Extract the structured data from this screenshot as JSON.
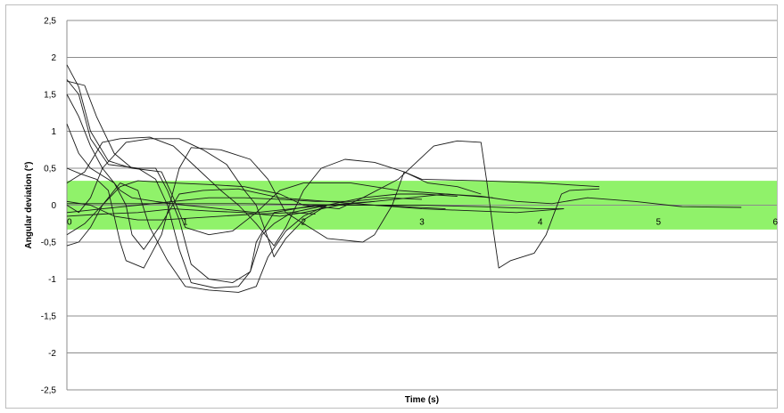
{
  "chart_data": {
    "type": "line",
    "title": "",
    "xlabel": "Time (s)",
    "ylabel": "Angular deviation (°)",
    "xlim": [
      0,
      6
    ],
    "ylim": [
      -2.5,
      2.5
    ],
    "x_ticks": [
      "0",
      "1",
      "2",
      "3",
      "4",
      "5",
      "6"
    ],
    "y_ticks": [
      "2,5",
      "2",
      "1,5",
      "1",
      "0,5",
      "0",
      "-0,5",
      "-1",
      "-1,5",
      "-2",
      "-2,5"
    ],
    "grid": true,
    "tolerance_band": {
      "ymin": -0.33,
      "ymax": 0.33,
      "color": "#90f26a"
    },
    "line_color": "#1a1a1a",
    "gridline_color": "#8c8c8c",
    "series": [
      {
        "points": [
          [
            0,
            1.9
          ],
          [
            0.1,
            1.6
          ],
          [
            0.2,
            1.0
          ],
          [
            0.35,
            0.6
          ],
          [
            0.55,
            0.5
          ],
          [
            0.8,
            0.45
          ],
          [
            0.9,
            0.1
          ],
          [
            1.0,
            -0.3
          ],
          [
            1.2,
            -0.4
          ],
          [
            1.4,
            -0.35
          ],
          [
            1.6,
            -0.1
          ],
          [
            1.8,
            0.2
          ],
          [
            2.0,
            0.3
          ],
          [
            2.4,
            0.3
          ],
          [
            2.8,
            0.2
          ],
          [
            3.2,
            0.15
          ],
          [
            3.6,
            0.1
          ]
        ]
      },
      {
        "points": [
          [
            0,
            1.7
          ],
          [
            0.1,
            1.5
          ],
          [
            0.2,
            0.9
          ],
          [
            0.35,
            0.55
          ],
          [
            0.6,
            0.5
          ],
          [
            0.75,
            0.35
          ],
          [
            0.85,
            0.0
          ],
          [
            0.95,
            -0.6
          ],
          [
            1.05,
            -1.05
          ],
          [
            1.25,
            -1.12
          ],
          [
            1.45,
            -1.1
          ],
          [
            1.55,
            -0.9
          ],
          [
            1.65,
            -0.4
          ],
          [
            1.75,
            -0.25
          ],
          [
            1.9,
            -0.1
          ],
          [
            2.2,
            0.0
          ],
          [
            2.6,
            0.05
          ]
        ]
      },
      {
        "points": [
          [
            0,
            1.68
          ],
          [
            0.15,
            1.62
          ],
          [
            0.25,
            1.2
          ],
          [
            0.4,
            0.7
          ],
          [
            0.55,
            0.5
          ],
          [
            0.75,
            0.5
          ],
          [
            0.85,
            0.2
          ],
          [
            0.95,
            -0.2
          ],
          [
            1.05,
            -0.8
          ],
          [
            1.2,
            -1.0
          ],
          [
            1.4,
            -1.05
          ],
          [
            1.55,
            -0.9
          ],
          [
            1.6,
            -0.5
          ],
          [
            1.75,
            -0.1
          ],
          [
            2.1,
            0.0
          ],
          [
            2.6,
            0.0
          ],
          [
            3.2,
            -0.05
          ]
        ]
      },
      {
        "points": [
          [
            0,
            1.1
          ],
          [
            0.1,
            0.7
          ],
          [
            0.2,
            0.5
          ],
          [
            0.4,
            0.3
          ],
          [
            0.5,
            0.0
          ],
          [
            0.55,
            -0.4
          ],
          [
            0.65,
            -0.6
          ],
          [
            0.8,
            -0.25
          ],
          [
            0.95,
            0.15
          ],
          [
            1.15,
            0.2
          ],
          [
            1.45,
            0.22
          ],
          [
            1.8,
            0.1
          ],
          [
            2.2,
            0.05
          ],
          [
            2.6,
            0.0
          ],
          [
            3.0,
            -0.05
          ],
          [
            3.8,
            -0.1
          ],
          [
            4.2,
            -0.05
          ]
        ]
      },
      {
        "points": [
          [
            0,
            0.5
          ],
          [
            0.12,
            0.42
          ],
          [
            0.25,
            0.35
          ],
          [
            0.35,
            0.2
          ],
          [
            0.45,
            -0.5
          ],
          [
            0.5,
            -0.75
          ],
          [
            0.65,
            -0.85
          ],
          [
            0.8,
            -0.4
          ],
          [
            0.95,
            0.5
          ],
          [
            1.05,
            0.78
          ],
          [
            1.3,
            0.75
          ],
          [
            1.55,
            0.62
          ],
          [
            1.7,
            0.35
          ],
          [
            1.85,
            -0.1
          ],
          [
            2.05,
            -0.3
          ],
          [
            2.2,
            -0.45
          ],
          [
            2.5,
            -0.5
          ],
          [
            2.6,
            -0.4
          ],
          [
            2.75,
            0.0
          ],
          [
            2.85,
            0.45
          ],
          [
            3.0,
            0.35
          ],
          [
            3.5,
            0.33
          ],
          [
            4.0,
            0.3
          ],
          [
            4.5,
            0.25
          ]
        ]
      },
      {
        "points": [
          [
            0,
            0.3
          ],
          [
            0.15,
            0.45
          ],
          [
            0.3,
            0.85
          ],
          [
            0.45,
            0.9
          ],
          [
            0.7,
            0.92
          ],
          [
            0.9,
            0.8
          ],
          [
            1.1,
            0.5
          ],
          [
            1.3,
            0.2
          ],
          [
            1.45,
            0.0
          ],
          [
            1.6,
            -0.25
          ],
          [
            1.75,
            -0.55
          ],
          [
            1.85,
            -0.3
          ],
          [
            2.0,
            0.2
          ],
          [
            2.15,
            0.5
          ],
          [
            2.35,
            0.62
          ],
          [
            2.6,
            0.58
          ],
          [
            2.85,
            0.45
          ],
          [
            3.05,
            0.3
          ],
          [
            3.3,
            0.25
          ],
          [
            3.5,
            0.15
          ]
        ]
      },
      {
        "points": [
          [
            0,
            0.0
          ],
          [
            0.1,
            -0.1
          ],
          [
            0.2,
            0.1
          ],
          [
            0.3,
            0.5
          ],
          [
            0.5,
            0.85
          ],
          [
            0.7,
            0.9
          ],
          [
            0.95,
            0.9
          ],
          [
            1.15,
            0.75
          ],
          [
            1.35,
            0.55
          ],
          [
            1.5,
            0.2
          ],
          [
            1.6,
            0.0
          ],
          [
            1.7,
            -0.45
          ],
          [
            1.75,
            -0.7
          ],
          [
            1.85,
            -0.45
          ],
          [
            2.0,
            -0.2
          ],
          [
            2.2,
            0.0
          ],
          [
            2.5,
            0.1
          ],
          [
            2.8,
            0.35
          ],
          [
            3.1,
            0.8
          ],
          [
            3.3,
            0.87
          ],
          [
            3.5,
            0.85
          ],
          [
            3.55,
            0.3
          ],
          [
            3.6,
            -0.3
          ],
          [
            3.65,
            -0.85
          ],
          [
            3.75,
            -0.75
          ],
          [
            3.95,
            -0.65
          ],
          [
            4.05,
            -0.4
          ],
          [
            4.12,
            -0.1
          ],
          [
            4.18,
            0.15
          ],
          [
            4.25,
            0.2
          ],
          [
            4.5,
            0.22
          ]
        ]
      },
      {
        "points": [
          [
            0,
            -0.55
          ],
          [
            0.1,
            -0.5
          ],
          [
            0.2,
            -0.3
          ],
          [
            0.3,
            0.0
          ],
          [
            0.45,
            0.25
          ],
          [
            0.6,
            0.33
          ],
          [
            0.9,
            0.3
          ],
          [
            1.2,
            0.28
          ],
          [
            1.5,
            0.25
          ],
          [
            1.8,
            0.15
          ],
          [
            2.0,
            0.0
          ],
          [
            2.3,
            -0.05
          ],
          [
            2.5,
            0.1
          ],
          [
            2.8,
            0.15
          ],
          [
            3.0,
            0.15
          ],
          [
            3.3,
            0.12
          ]
        ]
      },
      {
        "points": [
          [
            0,
            -0.4
          ],
          [
            0.15,
            -0.25
          ],
          [
            0.3,
            0.0
          ],
          [
            0.45,
            0.3
          ],
          [
            0.6,
            0.2
          ],
          [
            0.7,
            -0.3
          ],
          [
            0.85,
            -0.75
          ],
          [
            1.0,
            -1.1
          ],
          [
            1.2,
            -1.15
          ],
          [
            1.45,
            -1.18
          ],
          [
            1.6,
            -1.1
          ],
          [
            1.7,
            -0.7
          ],
          [
            1.85,
            -0.35
          ],
          [
            2.0,
            -0.15
          ],
          [
            2.2,
            0.0
          ]
        ]
      },
      {
        "points": [
          [
            0,
            -0.15
          ],
          [
            0.3,
            -0.12
          ],
          [
            0.6,
            -0.1
          ],
          [
            0.9,
            -0.05
          ],
          [
            1.2,
            -0.08
          ],
          [
            1.5,
            -0.1
          ],
          [
            1.8,
            -0.15
          ],
          [
            2.0,
            -0.1
          ],
          [
            2.3,
            0.0
          ],
          [
            2.6,
            0.05
          ],
          [
            2.9,
            0.1
          ],
          [
            3.2,
            0.15
          ],
          [
            3.5,
            0.12
          ],
          [
            3.8,
            0.05
          ],
          [
            4.1,
            0.02
          ],
          [
            4.4,
            0.1
          ],
          [
            4.8,
            0.05
          ],
          [
            5.2,
            -0.02
          ],
          [
            5.7,
            -0.03
          ]
        ]
      },
      {
        "points": [
          [
            0,
            0.02
          ],
          [
            0.5,
            0.02
          ],
          [
            1.0,
            0.02
          ],
          [
            1.5,
            0.02
          ],
          [
            2.0,
            0.01
          ],
          [
            2.5,
            0.0
          ],
          [
            3.0,
            0.0
          ],
          [
            3.5,
            -0.02
          ],
          [
            4.0,
            -0.05
          ],
          [
            4.2,
            -0.05
          ]
        ]
      },
      {
        "points": [
          [
            0,
            -0.1
          ],
          [
            0.3,
            -0.05
          ],
          [
            0.6,
            0.0
          ],
          [
            0.9,
            0.05
          ],
          [
            1.2,
            0.1
          ],
          [
            1.5,
            0.1
          ],
          [
            1.8,
            0.08
          ],
          [
            2.1,
            0.05
          ],
          [
            2.4,
            0.05
          ],
          [
            2.7,
            0.1
          ],
          [
            3.0,
            0.08
          ]
        ]
      },
      {
        "points": [
          [
            0,
            0.05
          ],
          [
            0.2,
            0.0
          ],
          [
            0.4,
            -0.15
          ],
          [
            0.6,
            -0.2
          ],
          [
            0.8,
            -0.2
          ],
          [
            1.0,
            -0.18
          ],
          [
            1.3,
            -0.15
          ],
          [
            1.6,
            -0.12
          ],
          [
            1.9,
            -0.1
          ],
          [
            2.1,
            -0.12
          ]
        ]
      },
      {
        "points": [
          [
            0,
            1.5
          ],
          [
            0.1,
            1.2
          ],
          [
            0.2,
            0.8
          ],
          [
            0.3,
            0.5
          ],
          [
            0.45,
            0.2
          ],
          [
            0.55,
            0.1
          ],
          [
            0.75,
            0.05
          ],
          [
            1.0,
            0.0
          ],
          [
            1.3,
            -0.05
          ],
          [
            1.6,
            -0.1
          ],
          [
            1.9,
            -0.05
          ],
          [
            2.2,
            0.0
          ]
        ]
      }
    ]
  }
}
